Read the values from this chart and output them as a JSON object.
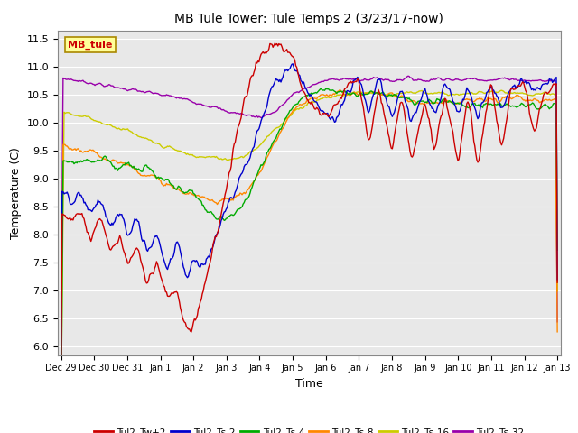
{
  "title": "MB Tule Tower: Tule Temps 2 (3/23/17-now)",
  "xlabel": "Time",
  "ylabel": "Temperature (C)",
  "ylim": [
    6.0,
    11.5
  ],
  "yticks": [
    6.0,
    6.5,
    7.0,
    7.5,
    8.0,
    8.5,
    9.0,
    9.5,
    10.0,
    10.5,
    11.0,
    11.5
  ],
  "bg_color": "#e8e8e8",
  "legend_label": "MB_tule",
  "series_colors": {
    "Tul2_Tw+2": "#cc0000",
    "Tul2_Ts-2": "#0000cc",
    "Tul2_Ts-4": "#00aa00",
    "Tul2_Ts-8": "#ff8800",
    "Tul2_Ts-16": "#cccc00",
    "Tul2_Ts-32": "#9900aa"
  },
  "x_tick_labels": [
    "Dec 29",
    "Dec 30",
    "Dec 31",
    "Jan 1",
    "Jan 2",
    "Jan 3",
    "Jan 4",
    "Jan 5",
    "Jan 6",
    "Jan 7",
    "Jan 8",
    "Jan 9",
    "Jan 10",
    "Jan 11",
    "Jan 12",
    "Jan 13"
  ],
  "n_points": 500
}
